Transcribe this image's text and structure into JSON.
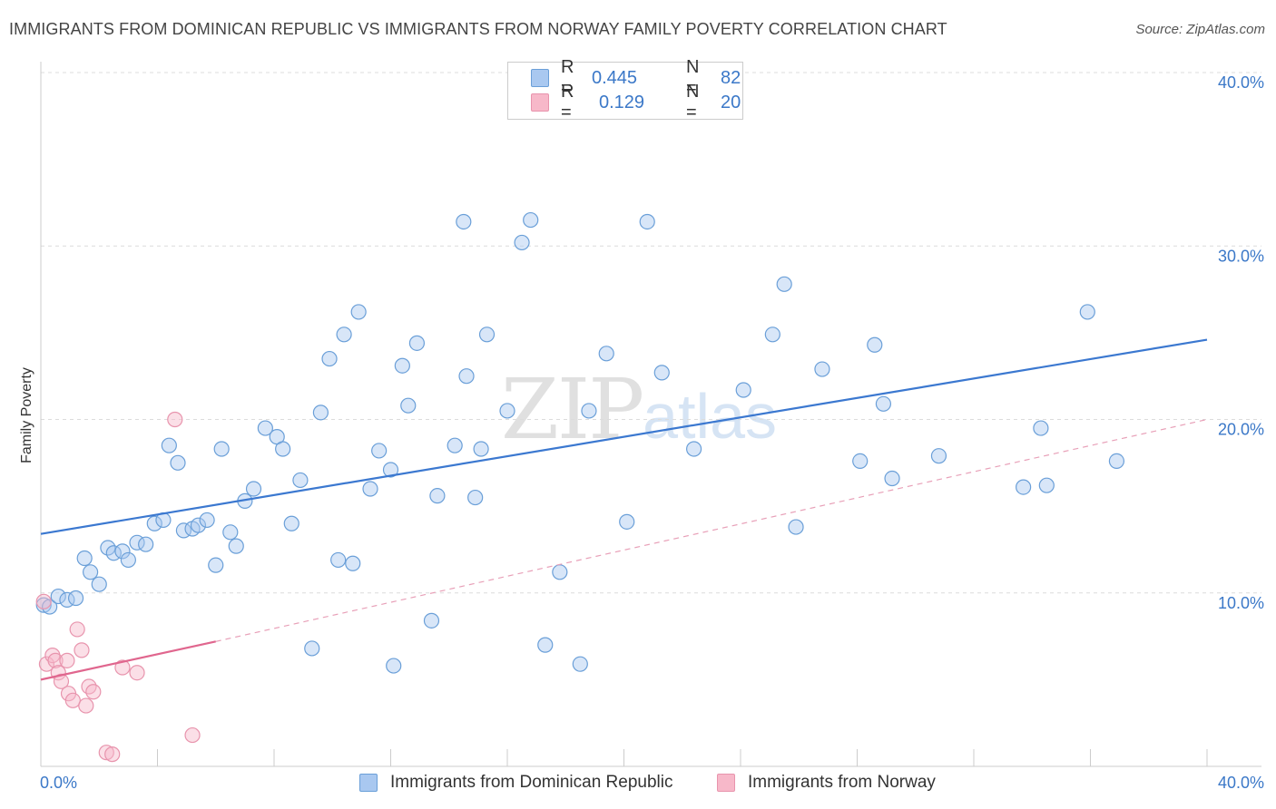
{
  "title": "IMMIGRANTS FROM DOMINICAN REPUBLIC VS IMMIGRANTS FROM NORWAY FAMILY POVERTY CORRELATION CHART",
  "source": "Source: ZipAtlas.com",
  "watermark": {
    "zip": "ZIP",
    "atlas": "atlas"
  },
  "legend": {
    "rows": [
      {
        "r_label": "R =",
        "r_value": "0.445",
        "n_label": "N =",
        "n_value": "82",
        "color": "#a9c8f0"
      },
      {
        "r_label": "R =",
        "r_value": "0.129",
        "n_label": "N =",
        "n_value": "20",
        "color": "#f7b8c9"
      }
    ]
  },
  "bottom_legend": [
    {
      "label": "Immigrants from Dominican Republic",
      "color": "#a9c8f0"
    },
    {
      "label": "Immigrants from Norway",
      "color": "#f7b8c9"
    }
  ],
  "chart_data": {
    "type": "scatter",
    "ylabel": "Family Poverty",
    "xlim": [
      0,
      40
    ],
    "ylim": [
      0,
      40
    ],
    "x_ticks": [
      "0.0%",
      "40.0%"
    ],
    "y_ticks": [
      {
        "value": 10,
        "label": "10.0%"
      },
      {
        "value": 20,
        "label": "20.0%"
      },
      {
        "value": 30,
        "label": "30.0%"
      },
      {
        "value": 40,
        "label": "40.0%"
      }
    ],
    "grid": true,
    "series": [
      {
        "name": "Immigrants from Dominican Republic",
        "color": "#a9c8f0",
        "stroke": "#6a9fd8",
        "trend": {
          "x": [
            0,
            40
          ],
          "y": [
            13.4,
            24.6
          ],
          "color": "#3b78d0",
          "style": "solid"
        },
        "points": [
          [
            0.1,
            9.3
          ],
          [
            0.3,
            9.2
          ],
          [
            0.6,
            9.8
          ],
          [
            0.9,
            9.6
          ],
          [
            1.2,
            9.7
          ],
          [
            1.5,
            12.0
          ],
          [
            1.7,
            11.2
          ],
          [
            2.0,
            10.5
          ],
          [
            2.3,
            12.6
          ],
          [
            2.5,
            12.3
          ],
          [
            2.8,
            12.4
          ],
          [
            3.0,
            11.9
          ],
          [
            3.3,
            12.9
          ],
          [
            3.6,
            12.8
          ],
          [
            3.9,
            14.0
          ],
          [
            4.2,
            14.2
          ],
          [
            4.4,
            18.5
          ],
          [
            4.7,
            17.5
          ],
          [
            4.9,
            13.6
          ],
          [
            5.2,
            13.7
          ],
          [
            5.4,
            13.9
          ],
          [
            5.7,
            14.2
          ],
          [
            6.0,
            11.6
          ],
          [
            6.2,
            18.3
          ],
          [
            6.5,
            13.5
          ],
          [
            6.7,
            12.7
          ],
          [
            7.0,
            15.3
          ],
          [
            7.3,
            16.0
          ],
          [
            7.7,
            19.5
          ],
          [
            8.1,
            19.0
          ],
          [
            8.3,
            18.3
          ],
          [
            8.6,
            14.0
          ],
          [
            8.9,
            16.5
          ],
          [
            9.3,
            6.8
          ],
          [
            9.6,
            20.4
          ],
          [
            9.9,
            23.5
          ],
          [
            10.2,
            11.9
          ],
          [
            10.4,
            24.9
          ],
          [
            10.7,
            11.7
          ],
          [
            10.9,
            26.2
          ],
          [
            11.3,
            16.0
          ],
          [
            11.6,
            18.2
          ],
          [
            12.0,
            17.1
          ],
          [
            12.1,
            5.8
          ],
          [
            12.4,
            23.1
          ],
          [
            12.6,
            20.8
          ],
          [
            12.9,
            24.4
          ],
          [
            13.4,
            8.4
          ],
          [
            13.6,
            15.6
          ],
          [
            14.2,
            18.5
          ],
          [
            14.5,
            31.4
          ],
          [
            14.6,
            22.5
          ],
          [
            14.9,
            15.5
          ],
          [
            15.1,
            18.3
          ],
          [
            15.3,
            24.9
          ],
          [
            16.0,
            20.5
          ],
          [
            16.5,
            30.2
          ],
          [
            16.8,
            31.5
          ],
          [
            17.3,
            7.0
          ],
          [
            17.8,
            11.2
          ],
          [
            18.5,
            5.9
          ],
          [
            18.8,
            20.5
          ],
          [
            19.4,
            23.8
          ],
          [
            20.1,
            14.1
          ],
          [
            20.8,
            31.4
          ],
          [
            21.3,
            22.7
          ],
          [
            22.4,
            18.3
          ],
          [
            24.1,
            21.7
          ],
          [
            25.1,
            24.9
          ],
          [
            25.5,
            27.8
          ],
          [
            25.9,
            13.8
          ],
          [
            26.8,
            22.9
          ],
          [
            28.1,
            17.6
          ],
          [
            28.6,
            24.3
          ],
          [
            28.9,
            20.9
          ],
          [
            29.2,
            16.6
          ],
          [
            30.8,
            17.9
          ],
          [
            33.7,
            16.1
          ],
          [
            34.3,
            19.5
          ],
          [
            34.5,
            16.2
          ],
          [
            35.9,
            26.2
          ],
          [
            36.9,
            17.6
          ]
        ]
      },
      {
        "name": "Immigrants from Norway",
        "color": "#f7b8c9",
        "stroke": "#e894ad",
        "trend": {
          "x": [
            0,
            6.0
          ],
          "y": [
            5.0,
            7.2
          ],
          "color": "#e0668e",
          "style": "solid"
        },
        "trend_ext": {
          "x": [
            6.0,
            40
          ],
          "y": [
            7.2,
            20.0
          ],
          "color": "#e8a0b8",
          "style": "dashed"
        },
        "points": [
          [
            0.1,
            9.5
          ],
          [
            0.2,
            5.9
          ],
          [
            0.4,
            6.4
          ],
          [
            0.5,
            6.1
          ],
          [
            0.6,
            5.4
          ],
          [
            0.7,
            4.9
          ],
          [
            0.9,
            6.1
          ],
          [
            0.95,
            4.2
          ],
          [
            1.1,
            3.8
          ],
          [
            1.25,
            7.9
          ],
          [
            1.4,
            6.7
          ],
          [
            1.55,
            3.5
          ],
          [
            1.65,
            4.6
          ],
          [
            1.8,
            4.3
          ],
          [
            2.25,
            0.8
          ],
          [
            2.45,
            0.7
          ],
          [
            2.8,
            5.7
          ],
          [
            3.3,
            5.4
          ],
          [
            4.6,
            20.0
          ],
          [
            5.2,
            1.8
          ]
        ]
      }
    ]
  }
}
